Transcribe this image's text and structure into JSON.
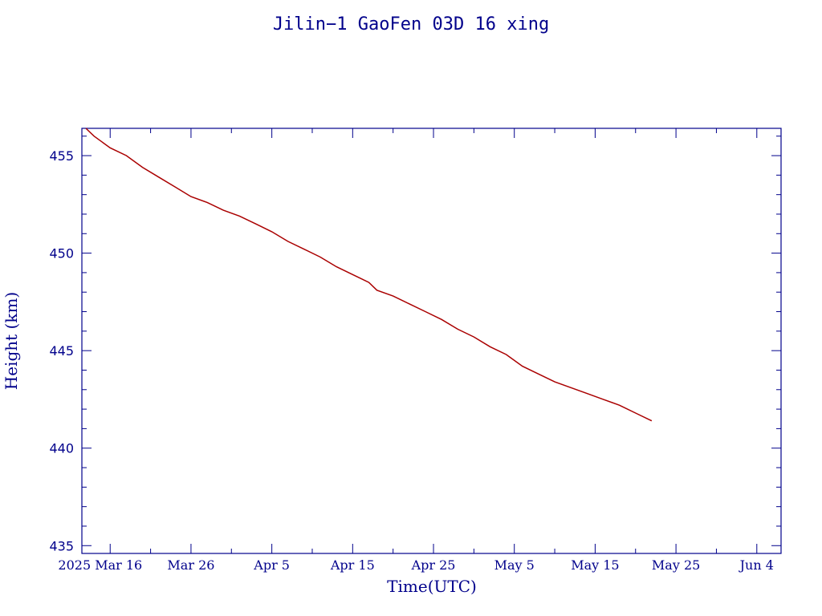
{
  "chart_data": {
    "type": "line",
    "title": "Jilin−1 GaoFen 03D 16 xing",
    "xlabel": "Time(UTC)",
    "ylabel": "Height (km)",
    "xlim": [
      "2025-03-12T12:00",
      "2025-06-07"
    ],
    "ylim": [
      434.6,
      456.4
    ],
    "y_ticks": [
      435,
      440,
      445,
      450,
      455
    ],
    "y_tick_labels": [
      "435",
      "440",
      "445",
      "450",
      "455"
    ],
    "x_ticks": [
      "2025-03-16",
      "2025-03-26",
      "2025-04-05",
      "2025-04-15",
      "2025-04-25",
      "2025-05-05",
      "2025-05-15",
      "2025-05-25",
      "2025-06-04"
    ],
    "x_tick_labels": [
      "2025 Mar 16",
      "Mar 26",
      "Apr  5",
      "Apr 15",
      "Apr 25",
      "May  5",
      "May 15",
      "May 25",
      "Jun  4"
    ],
    "grid": false,
    "colors": {
      "axes": "#00008b",
      "series": "#aa0000"
    },
    "series": [
      {
        "x": [
          "2025-03-13",
          "2025-03-14",
          "2025-03-16",
          "2025-03-18",
          "2025-03-20",
          "2025-03-22",
          "2025-03-24",
          "2025-03-26",
          "2025-03-28",
          "2025-03-30",
          "2025-04-01",
          "2025-04-03",
          "2025-04-05",
          "2025-04-07",
          "2025-04-09",
          "2025-04-11",
          "2025-04-13",
          "2025-04-15",
          "2025-04-16",
          "2025-04-17",
          "2025-04-18",
          "2025-04-20",
          "2025-04-22",
          "2025-04-24",
          "2025-04-26",
          "2025-04-28",
          "2025-04-30",
          "2025-05-02",
          "2025-05-04",
          "2025-05-06",
          "2025-05-08",
          "2025-05-10",
          "2025-05-12",
          "2025-05-14",
          "2025-05-16",
          "2025-05-18",
          "2025-05-20",
          "2025-05-22"
        ],
        "y": [
          456.4,
          456.0,
          455.4,
          455.0,
          454.4,
          453.9,
          453.4,
          452.9,
          452.6,
          452.2,
          451.9,
          451.5,
          451.1,
          450.6,
          450.2,
          449.8,
          449.3,
          448.9,
          448.7,
          448.5,
          448.1,
          447.8,
          447.4,
          447.0,
          446.6,
          446.1,
          445.7,
          445.2,
          444.8,
          444.2,
          443.8,
          443.4,
          443.1,
          442.8,
          442.5,
          442.2,
          441.8,
          441.4
        ]
      }
    ]
  }
}
